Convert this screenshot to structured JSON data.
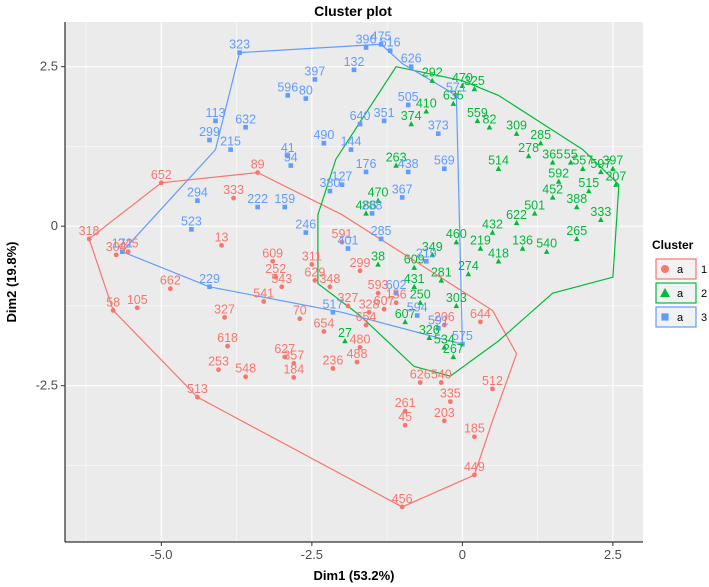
{
  "chart_data": {
    "type": "scatter",
    "title": "Cluster plot",
    "xlabel": "Dim1 (53.2%)",
    "ylabel": "Dim2 (19.8%)",
    "xlim": [
      -6.6,
      3.0
    ],
    "ylim": [
      -4.95,
      3.2
    ],
    "xticks": [
      -5.0,
      -2.5,
      0.0,
      2.5
    ],
    "xtick_labels": [
      "-5.0",
      "-2.5",
      "0",
      "2.5"
    ],
    "yticks": [
      2.5,
      0,
      -2.5
    ],
    "ytick_labels": [
      "2.5",
      "0",
      "-2.5"
    ],
    "legend": {
      "title": "Cluster",
      "position": "right",
      "glyph_text": "a",
      "entries": [
        {
          "name": "1",
          "shape": "circle",
          "color": "#F8766D"
        },
        {
          "name": "2",
          "shape": "triangle",
          "color": "#00BA38"
        },
        {
          "name": "3",
          "shape": "square",
          "color": "#619CFF"
        }
      ]
    },
    "series": [
      {
        "name": "1",
        "color": "#F8766D",
        "shape": "circle",
        "hull": [
          [
            -6.2,
            -0.2
          ],
          [
            -5.0,
            0.68
          ],
          [
            -3.4,
            0.84
          ],
          [
            -2.0,
            0.18
          ],
          [
            0.5,
            -1.32
          ],
          [
            0.9,
            -2.0
          ],
          [
            0.5,
            -3.05
          ],
          [
            0.2,
            -3.9
          ],
          [
            -1.0,
            -4.4
          ],
          [
            -4.4,
            -2.68
          ],
          [
            -5.8,
            -1.32
          ]
        ],
        "points": [
          {
            "x": -6.2,
            "y": -0.2,
            "label": "318"
          },
          {
            "x": -5.0,
            "y": 0.68,
            "label": "652"
          },
          {
            "x": -3.4,
            "y": 0.84,
            "label": "89"
          },
          {
            "x": -5.55,
            "y": -0.4,
            "label": "245"
          },
          {
            "x": -5.75,
            "y": -0.45,
            "label": "304"
          },
          {
            "x": -5.8,
            "y": -1.32,
            "label": "58"
          },
          {
            "x": -5.4,
            "y": -1.28,
            "label": "105"
          },
          {
            "x": -4.85,
            "y": -0.98,
            "label": "662"
          },
          {
            "x": -3.8,
            "y": 0.44,
            "label": "333"
          },
          {
            "x": -4.0,
            "y": -0.3,
            "label": "13"
          },
          {
            "x": -3.15,
            "y": -0.55,
            "label": "609"
          },
          {
            "x": -3.1,
            "y": -0.8,
            "label": "252"
          },
          {
            "x": -3.0,
            "y": -0.95,
            "label": "543"
          },
          {
            "x": -3.3,
            "y": -1.18,
            "label": "541"
          },
          {
            "x": -3.95,
            "y": -1.43,
            "label": "327"
          },
          {
            "x": -2.7,
            "y": -1.45,
            "label": "70"
          },
          {
            "x": -3.9,
            "y": -1.88,
            "label": "618"
          },
          {
            "x": -4.05,
            "y": -2.25,
            "label": "253"
          },
          {
            "x": -3.6,
            "y": -2.36,
            "label": "548"
          },
          {
            "x": -2.95,
            "y": -2.05,
            "label": "627"
          },
          {
            "x": -2.8,
            "y": -2.15,
            "label": "357"
          },
          {
            "x": -2.8,
            "y": -2.37,
            "label": "184"
          },
          {
            "x": -2.15,
            "y": -2.23,
            "label": "236"
          },
          {
            "x": -4.4,
            "y": -2.68,
            "label": "513"
          },
          {
            "x": -2.5,
            "y": -0.6,
            "label": "311"
          },
          {
            "x": -2.45,
            "y": -0.85,
            "label": "629"
          },
          {
            "x": -2.2,
            "y": -0.95,
            "label": "348"
          },
          {
            "x": -1.9,
            "y": -1.25,
            "label": "327"
          },
          {
            "x": -1.55,
            "y": -1.35,
            "label": "328"
          },
          {
            "x": -1.3,
            "y": -1.3,
            "label": "607"
          },
          {
            "x": -1.6,
            "y": -1.55,
            "label": "654"
          },
          {
            "x": -1.7,
            "y": -0.7,
            "label": "299"
          },
          {
            "x": -2.0,
            "y": -0.25,
            "label": "591"
          },
          {
            "x": -1.1,
            "y": -1.2,
            "label": "156"
          },
          {
            "x": -1.7,
            "y": -1.9,
            "label": "480"
          },
          {
            "x": -1.75,
            "y": -2.13,
            "label": "488"
          },
          {
            "x": -0.7,
            "y": -2.45,
            "label": "626"
          },
          {
            "x": -0.35,
            "y": -2.45,
            "label": "540"
          },
          {
            "x": -0.2,
            "y": -2.75,
            "label": "335"
          },
          {
            "x": -0.95,
            "y": -2.9,
            "label": "261"
          },
          {
            "x": -0.95,
            "y": -3.12,
            "label": "45"
          },
          {
            "x": -0.3,
            "y": -3.05,
            "label": "203"
          },
          {
            "x": 0.2,
            "y": -3.3,
            "label": "185"
          },
          {
            "x": 0.5,
            "y": -2.55,
            "label": "512"
          },
          {
            "x": 0.3,
            "y": -1.5,
            "label": "644"
          },
          {
            "x": -0.3,
            "y": -1.55,
            "label": "206"
          },
          {
            "x": 0.2,
            "y": -3.9,
            "label": "449"
          },
          {
            "x": -1.0,
            "y": -4.4,
            "label": "456"
          },
          {
            "x": -2.3,
            "y": -1.65,
            "label": "654"
          },
          {
            "x": -1.4,
            "y": -1.05,
            "label": "593"
          }
        ]
      },
      {
        "name": "2",
        "color": "#00BA38",
        "shape": "triangle",
        "hull": [
          [
            -1.1,
            2.5
          ],
          [
            0.0,
            2.28
          ],
          [
            0.6,
            2.05
          ],
          [
            2.0,
            1.2
          ],
          [
            2.6,
            0.65
          ],
          [
            2.5,
            -0.8
          ],
          [
            1.5,
            -1.05
          ],
          [
            0.6,
            -1.8
          ],
          [
            -0.2,
            -2.35
          ],
          [
            -0.8,
            -2.2
          ],
          [
            -1.7,
            -1.4
          ],
          [
            -2.4,
            -0.9
          ],
          [
            -2.4,
            0.18
          ],
          [
            -2.1,
            1.05
          ]
        ],
        "points": [
          {
            "x": -0.5,
            "y": 2.28,
            "label": "292"
          },
          {
            "x": 0.0,
            "y": 2.2,
            "label": "470"
          },
          {
            "x": 0.2,
            "y": 2.15,
            "label": "325"
          },
          {
            "x": -0.15,
            "y": 1.92,
            "label": "635"
          },
          {
            "x": 0.25,
            "y": 1.65,
            "label": "559"
          },
          {
            "x": 0.45,
            "y": 1.55,
            "label": "82"
          },
          {
            "x": 0.9,
            "y": 1.45,
            "label": "309"
          },
          {
            "x": 1.3,
            "y": 1.3,
            "label": "285"
          },
          {
            "x": 1.5,
            "y": 1.0,
            "label": "365"
          },
          {
            "x": 1.8,
            "y": 1.0,
            "label": "55"
          },
          {
            "x": 2.0,
            "y": 0.9,
            "label": "557"
          },
          {
            "x": 2.3,
            "y": 0.85,
            "label": "597"
          },
          {
            "x": 2.5,
            "y": 0.9,
            "label": "397"
          },
          {
            "x": 2.55,
            "y": 0.65,
            "label": "207"
          },
          {
            "x": 2.1,
            "y": 0.55,
            "label": "515"
          },
          {
            "x": 1.9,
            "y": 0.3,
            "label": "388"
          },
          {
            "x": 1.5,
            "y": 0.45,
            "label": "452"
          },
          {
            "x": 1.2,
            "y": 0.2,
            "label": "501"
          },
          {
            "x": 0.9,
            "y": 0.05,
            "label": "622"
          },
          {
            "x": 0.5,
            "y": -0.1,
            "label": "432"
          },
          {
            "x": 0.3,
            "y": -0.35,
            "label": "219"
          },
          {
            "x": -0.1,
            "y": -0.25,
            "label": "460"
          },
          {
            "x": -0.5,
            "y": -0.45,
            "label": "349"
          },
          {
            "x": -0.8,
            "y": -0.65,
            "label": "609"
          },
          {
            "x": -0.35,
            "y": -0.85,
            "label": "281"
          },
          {
            "x": 0.1,
            "y": -0.75,
            "label": "274"
          },
          {
            "x": 0.6,
            "y": -0.55,
            "label": "418"
          },
          {
            "x": 1.0,
            "y": -0.35,
            "label": "136"
          },
          {
            "x": 1.4,
            "y": -0.4,
            "label": "540"
          },
          {
            "x": 1.9,
            "y": -0.2,
            "label": "265"
          },
          {
            "x": 2.3,
            "y": 0.1,
            "label": "333"
          },
          {
            "x": -0.7,
            "y": -1.2,
            "label": "250"
          },
          {
            "x": -0.1,
            "y": -1.25,
            "label": "303"
          },
          {
            "x": -0.55,
            "y": -1.75,
            "label": "326"
          },
          {
            "x": -0.3,
            "y": -1.9,
            "label": "534"
          },
          {
            "x": -0.15,
            "y": -2.05,
            "label": "267"
          },
          {
            "x": -1.95,
            "y": -1.8,
            "label": "27"
          },
          {
            "x": -1.4,
            "y": 0.4,
            "label": "470"
          },
          {
            "x": -1.6,
            "y": 0.2,
            "label": "486"
          },
          {
            "x": -1.1,
            "y": 0.95,
            "label": "263"
          },
          {
            "x": -0.85,
            "y": 1.6,
            "label": "374"
          },
          {
            "x": -0.6,
            "y": 1.8,
            "label": "410"
          },
          {
            "x": 0.6,
            "y": 0.9,
            "label": "514"
          },
          {
            "x": 1.1,
            "y": 1.1,
            "label": "278"
          },
          {
            "x": 1.6,
            "y": 0.7,
            "label": "592"
          },
          {
            "x": -0.95,
            "y": -1.5,
            "label": "607"
          },
          {
            "x": -0.8,
            "y": -0.95,
            "label": "431"
          },
          {
            "x": -1.4,
            "y": -0.6,
            "label": "38"
          }
        ]
      },
      {
        "name": "3",
        "color": "#619CFF",
        "shape": "square",
        "hull": [
          [
            -3.7,
            2.72
          ],
          [
            -1.35,
            2.85
          ],
          [
            -1.0,
            2.55
          ],
          [
            -0.1,
            2.05
          ],
          [
            0.0,
            -1.85
          ],
          [
            -2.0,
            -1.35
          ],
          [
            -4.2,
            -0.95
          ],
          [
            -5.65,
            -0.4
          ],
          [
            -4.1,
            1.2
          ]
        ],
        "points": [
          {
            "x": -3.7,
            "y": 2.72,
            "label": "323"
          },
          {
            "x": -1.35,
            "y": 2.85,
            "label": "475"
          },
          {
            "x": -1.6,
            "y": 2.8,
            "label": "396"
          },
          {
            "x": -1.2,
            "y": 2.75,
            "label": "616"
          },
          {
            "x": -0.85,
            "y": 2.5,
            "label": "626"
          },
          {
            "x": -2.45,
            "y": 2.3,
            "label": "397"
          },
          {
            "x": -1.8,
            "y": 2.45,
            "label": "132"
          },
          {
            "x": -2.9,
            "y": 2.05,
            "label": "596"
          },
          {
            "x": -2.6,
            "y": 2.0,
            "label": "80"
          },
          {
            "x": -4.1,
            "y": 1.65,
            "label": "113"
          },
          {
            "x": -3.6,
            "y": 1.55,
            "label": "632"
          },
          {
            "x": -4.2,
            "y": 1.35,
            "label": "299"
          },
          {
            "x": -3.85,
            "y": 1.2,
            "label": "215"
          },
          {
            "x": -2.9,
            "y": 1.1,
            "label": "41"
          },
          {
            "x": -2.85,
            "y": 0.95,
            "label": "54"
          },
          {
            "x": -4.4,
            "y": 0.4,
            "label": "294"
          },
          {
            "x": -3.4,
            "y": 0.3,
            "label": "222"
          },
          {
            "x": -2.95,
            "y": 0.3,
            "label": "159"
          },
          {
            "x": -4.5,
            "y": -0.05,
            "label": "523"
          },
          {
            "x": -2.6,
            "y": -0.1,
            "label": "246"
          },
          {
            "x": -5.65,
            "y": -0.4,
            "label": "172"
          },
          {
            "x": -4.2,
            "y": -0.95,
            "label": "229"
          },
          {
            "x": -2.15,
            "y": -1.35,
            "label": "517"
          },
          {
            "x": -0.4,
            "y": -1.6,
            "label": "591"
          },
          {
            "x": -0.75,
            "y": -1.4,
            "label": "594"
          },
          {
            "x": -1.3,
            "y": 1.65,
            "label": "351"
          },
          {
            "x": -1.85,
            "y": 1.2,
            "label": "144"
          },
          {
            "x": -1.6,
            "y": 0.85,
            "label": "176"
          },
          {
            "x": -0.9,
            "y": 0.85,
            "label": "438"
          },
          {
            "x": -2.2,
            "y": 0.55,
            "label": "380"
          },
          {
            "x": -1.0,
            "y": 0.45,
            "label": "367"
          },
          {
            "x": -1.35,
            "y": -0.2,
            "label": "285"
          },
          {
            "x": -0.6,
            "y": -0.55,
            "label": "219"
          },
          {
            "x": -1.9,
            "y": -0.35,
            "label": "401"
          },
          {
            "x": -0.9,
            "y": 1.9,
            "label": "505"
          },
          {
            "x": -0.4,
            "y": 1.45,
            "label": "373"
          },
          {
            "x": -1.7,
            "y": 1.6,
            "label": "640"
          },
          {
            "x": -2.3,
            "y": 1.3,
            "label": "490"
          },
          {
            "x": -0.3,
            "y": 0.9,
            "label": "569"
          },
          {
            "x": -1.1,
            "y": -1.05,
            "label": "602"
          },
          {
            "x": 0.0,
            "y": -1.85,
            "label": "575"
          },
          {
            "x": -0.1,
            "y": 2.05,
            "label": "571"
          },
          {
            "x": -1.5,
            "y": 0.2,
            "label": "288"
          },
          {
            "x": -2.0,
            "y": 0.65,
            "label": "127"
          }
        ]
      }
    ]
  }
}
